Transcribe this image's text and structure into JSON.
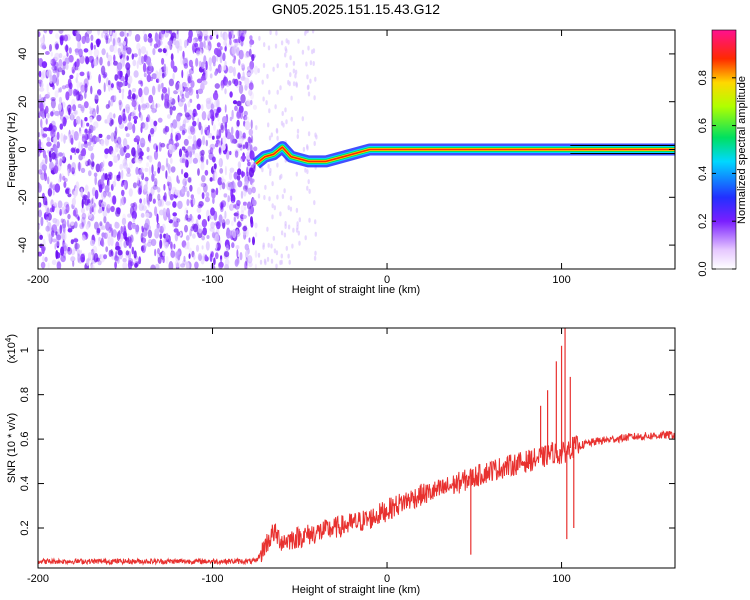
{
  "chart_data": [
    {
      "type": "heatmap",
      "title": "GN05.2025.151.15.43.G12",
      "xlabel": "Height of straight line (km)",
      "ylabel": "Frequency (Hz)",
      "xlim": [
        -200,
        165
      ],
      "ylim": [
        -50,
        50
      ],
      "xticks": [
        -200,
        -100,
        0,
        100
      ],
      "yticks": [
        -40,
        -20,
        0,
        20,
        40
      ],
      "colorbar": {
        "label": "Normalized spectral amplitude",
        "range": [
          0,
          1
        ],
        "ticks": [
          0.0,
          0.2,
          0.4,
          0.6,
          0.8
        ],
        "colormap": "rainbow (white-purple-blue-cyan-green-yellow-red-magenta)"
      },
      "noise_region_x": [
        -200,
        -75
      ],
      "ridge": {
        "description": "Narrow-band line near 0 Hz",
        "points": [
          {
            "x": -75,
            "y": -6
          },
          {
            "x": -70,
            "y": -3
          },
          {
            "x": -65,
            "y": -2
          },
          {
            "x": -60,
            "y": 1
          },
          {
            "x": -55,
            "y": -3
          },
          {
            "x": -45,
            "y": -5
          },
          {
            "x": -35,
            "y": -5
          },
          {
            "x": -25,
            "y": -3
          },
          {
            "x": -15,
            "y": -1
          },
          {
            "x": -10,
            "y": 0
          },
          {
            "x": 0,
            "y": 0
          },
          {
            "x": 20,
            "y": 0
          },
          {
            "x": 60,
            "y": 0
          },
          {
            "x": 100,
            "y": 0
          },
          {
            "x": 165,
            "y": 0
          }
        ]
      }
    },
    {
      "type": "line",
      "xlabel": "Height of straight line (km)",
      "ylabel": "SNR (10 * v/v)",
      "yexponent_label": "(x10",
      "yexponent_power": "4",
      "yexponent_close": ")",
      "xlim": [
        -200,
        165
      ],
      "ylim": [
        0.02,
        1.1
      ],
      "xticks": [
        -200,
        -100,
        0,
        100
      ],
      "yticks": [
        0.2,
        0.4,
        0.6,
        0.8,
        1
      ],
      "color": "#e8312f",
      "series": [
        {
          "x": [
            -200,
            -150,
            -100,
            -75,
            -70,
            -65,
            -60,
            -50,
            -40,
            -30,
            -20,
            -10,
            0,
            10,
            20,
            30,
            40,
            50,
            60,
            70,
            80,
            90,
            95,
            100,
            105,
            110,
            120,
            140,
            165
          ],
          "y": [
            0.05,
            0.05,
            0.05,
            0.05,
            0.12,
            0.18,
            0.14,
            0.16,
            0.18,
            0.2,
            0.22,
            0.24,
            0.28,
            0.32,
            0.35,
            0.37,
            0.4,
            0.43,
            0.46,
            0.48,
            0.5,
            0.52,
            0.54,
            0.53,
            0.56,
            0.57,
            0.59,
            0.61,
            0.62
          ]
        }
      ],
      "spikes": [
        {
          "x": 48,
          "y": 0.08
        },
        {
          "x": 88,
          "y": 0.75
        },
        {
          "x": 92,
          "y": 0.82
        },
        {
          "x": 97,
          "y": 0.95
        },
        {
          "x": 100,
          "y": 1.02
        },
        {
          "x": 102,
          "y": 1.1
        },
        {
          "x": 103,
          "y": 0.15
        },
        {
          "x": 105,
          "y": 0.88
        },
        {
          "x": 107,
          "y": 0.2
        }
      ]
    }
  ]
}
